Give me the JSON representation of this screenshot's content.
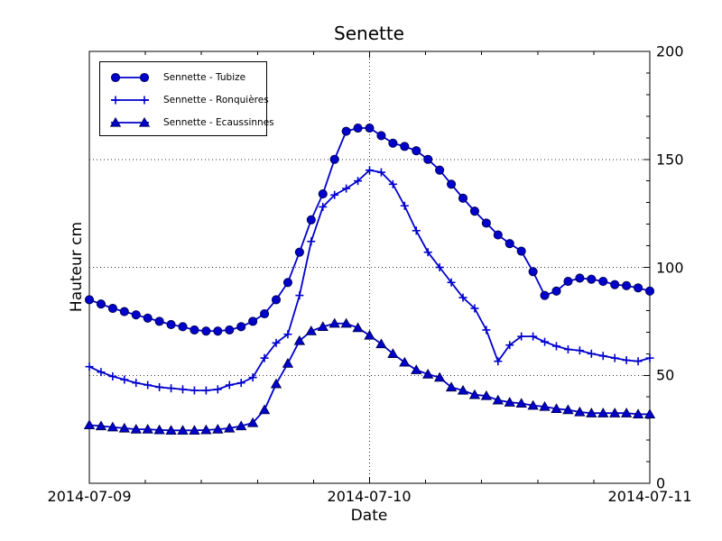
{
  "chart_data": {
    "type": "line",
    "title": "Senette",
    "xlabel": "Date",
    "ylabel": "Hauteur cm",
    "x_tick_labels": [
      "2014-07-09",
      "2014-07-10",
      "2014-07-11"
    ],
    "y_ticks": [
      0,
      50,
      100,
      150,
      200
    ],
    "ylim": [
      0,
      200
    ],
    "x_range_hours": [
      0,
      48
    ],
    "x_step_hours": 1,
    "grid": "dotted",
    "legend_position": "upper-left",
    "line_color": "#0000cd",
    "marker_edge_color": "#00004d",
    "series": [
      {
        "name": "Sennette - Tubize",
        "marker": "circle",
        "values": [
          85,
          83,
          81,
          79.5,
          78,
          76.5,
          75,
          73.5,
          72.5,
          71,
          70.5,
          70.5,
          71,
          72.5,
          75,
          78.5,
          85,
          93,
          107,
          122,
          134,
          150,
          163,
          164.5,
          164.5,
          161,
          157.5,
          156,
          154,
          150,
          145,
          138.5,
          132,
          126,
          120.5,
          115,
          111,
          107.5,
          98,
          87,
          89,
          93.5,
          95,
          94.5,
          93.5,
          92,
          91.5,
          90.5,
          89
        ]
      },
      {
        "name": "Sennette - Ronquières",
        "marker": "plus",
        "values": [
          54,
          51.5,
          49.5,
          48,
          46.5,
          45.5,
          44.5,
          44,
          43.5,
          43,
          43,
          43.5,
          45.5,
          46.5,
          49,
          58,
          65,
          69,
          87,
          112,
          128,
          133.5,
          136.5,
          140,
          145,
          144,
          138.5,
          128.5,
          117,
          107,
          100,
          93,
          86,
          81,
          71,
          56.5,
          64,
          68,
          68,
          65.5,
          63.5,
          62,
          61.5,
          60,
          59,
          58,
          57,
          56.5,
          58
        ]
      },
      {
        "name": "Sennette - Ecaussinnes",
        "marker": "triangle-up",
        "values": [
          27,
          26.5,
          26,
          25.5,
          25,
          25,
          24.7,
          24.5,
          24.5,
          24.5,
          24.7,
          25,
          25.5,
          26.5,
          28,
          34,
          46,
          55.5,
          66,
          70.5,
          72.5,
          74,
          74,
          72,
          68.5,
          64.5,
          60,
          56,
          52.5,
          50.5,
          49,
          44.5,
          43,
          41,
          40.5,
          38.5,
          37.5,
          37,
          36,
          35.5,
          34.5,
          34,
          33,
          32.5,
          32.5,
          32.5,
          32.5,
          32,
          32
        ]
      }
    ]
  }
}
